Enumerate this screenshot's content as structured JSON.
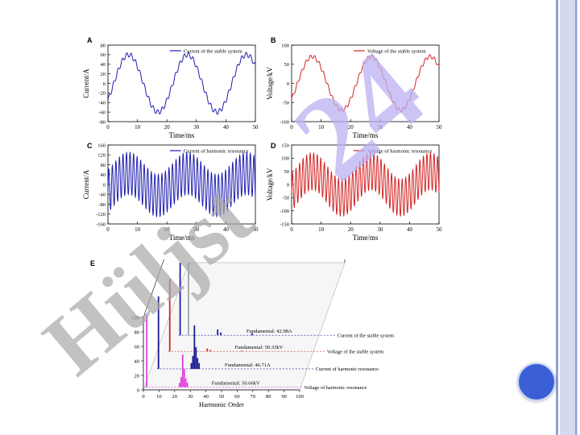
{
  "colors": {
    "current": "#1f1fb0",
    "voltage": "#d42424",
    "harmonic_current": "#1a1a8c",
    "harmonic_voltage": "#e040e0",
    "watermark_gray": "#b0b0b0",
    "watermark_purple": "#b9b0f0",
    "rail": "#c8d0ea",
    "button": "#3a5fd6"
  },
  "watermark": {
    "text_gray": "Hüljst",
    "text_purple": "24"
  },
  "panels": [
    {
      "letter": "A"
    },
    {
      "letter": "B"
    },
    {
      "letter": "C"
    },
    {
      "letter": "D"
    },
    {
      "letter": "E"
    }
  ],
  "chart_data": [
    {
      "id": "A",
      "type": "line",
      "legend": "Current of the stable system",
      "xlabel": "Time/ms",
      "ylabel": "Current/A",
      "xlim": [
        0,
        50
      ],
      "ylim": [
        -80,
        80
      ],
      "xticks": [
        0,
        10,
        20,
        30,
        40,
        50
      ],
      "yticks": [
        -80,
        -60,
        -40,
        -20,
        0,
        20,
        40,
        60,
        80
      ],
      "series": [
        {
          "name": "Current of the stable system",
          "fundamental_amplitude": 60,
          "fundamental_period_ms": 20,
          "ripple_amplitude": 5,
          "ripple_period_ms": 1.5
        }
      ]
    },
    {
      "id": "B",
      "type": "line",
      "legend": "Voltage of the stable system",
      "xlabel": "Time/ms",
      "ylabel": "Voltage/kV",
      "xlim": [
        0,
        50
      ],
      "ylim": [
        -100,
        100
      ],
      "xticks": [
        0,
        10,
        20,
        30,
        40,
        50
      ],
      "yticks": [
        -100,
        -50,
        0,
        50,
        100
      ],
      "series": [
        {
          "name": "Voltage of the stable system",
          "fundamental_amplitude": 70,
          "fundamental_period_ms": 20,
          "ripple_amplitude": 5,
          "ripple_period_ms": 1.5
        }
      ]
    },
    {
      "id": "C",
      "type": "line",
      "legend": "Current of harmonic resonance",
      "xlabel": "Time/ms",
      "ylabel": "Current/A",
      "xlim": [
        0,
        50
      ],
      "ylim": [
        -160,
        160
      ],
      "xticks": [
        0,
        10,
        20,
        30,
        40,
        50
      ],
      "yticks": [
        -160,
        -120,
        -80,
        -40,
        0,
        40,
        80,
        120,
        160
      ],
      "series": [
        {
          "name": "Current of harmonic resonance",
          "fundamental_amplitude": 45,
          "fundamental_period_ms": 20,
          "ripple_amplitude": 85,
          "ripple_period_ms": 1.2
        }
      ]
    },
    {
      "id": "D",
      "type": "line",
      "legend": "Voltage of harmonic resonance",
      "xlabel": "Time/ms",
      "ylabel": "Voltage/kV",
      "xlim": [
        0,
        50
      ],
      "ylim": [
        -150,
        150
      ],
      "xticks": [
        0,
        10,
        20,
        30,
        40,
        50
      ],
      "yticks": [
        -150,
        -100,
        -50,
        0,
        50,
        100,
        150
      ],
      "series": [
        {
          "name": "Voltage of harmonic resonance",
          "fundamental_amplitude": 50,
          "fundamental_period_ms": 20,
          "ripple_amplitude": 70,
          "ripple_period_ms": 1.2
        }
      ]
    },
    {
      "id": "E",
      "type": "bar",
      "xlabel": "Harmonic Order",
      "xlim": [
        0,
        100
      ],
      "ylim": [
        0,
        100
      ],
      "xticks": [
        0,
        10,
        20,
        30,
        40,
        50,
        60,
        70,
        80,
        90,
        100
      ],
      "yticks": [
        0,
        20,
        40,
        60,
        80,
        100
      ],
      "series": [
        {
          "name": "Current of the stable system",
          "fundamental_label": "Fundamental: 42.98A",
          "bars": [
            [
              1,
              100
            ],
            [
              25,
              8
            ],
            [
              27,
              4
            ],
            [
              47,
              3
            ]
          ]
        },
        {
          "name": "Voltage of the stable system",
          "fundamental_label": "Fundamental: 50.33kV",
          "bars": [
            [
              1,
              100
            ],
            [
              25,
              4
            ],
            [
              27,
              2
            ],
            [
              47,
              1
            ]
          ]
        },
        {
          "name": "Current of harmonic resonance",
          "fundamental_label": "Fundamental: 46.71A",
          "bars": [
            [
              1,
              100
            ],
            [
              24,
              60
            ],
            [
              25,
              30
            ],
            [
              26,
              15
            ],
            [
              23,
              18
            ],
            [
              22,
              8
            ],
            [
              27,
              8
            ]
          ]
        },
        {
          "name": "Voltage of harmonic resonance",
          "fundamental_label": "Fundamental: 50.66kV",
          "bars": [
            [
              1,
              100
            ],
            [
              24,
              45
            ],
            [
              25,
              25
            ],
            [
              26,
              12
            ],
            [
              23,
              14
            ],
            [
              22,
              6
            ],
            [
              27,
              6
            ]
          ]
        }
      ]
    }
  ]
}
